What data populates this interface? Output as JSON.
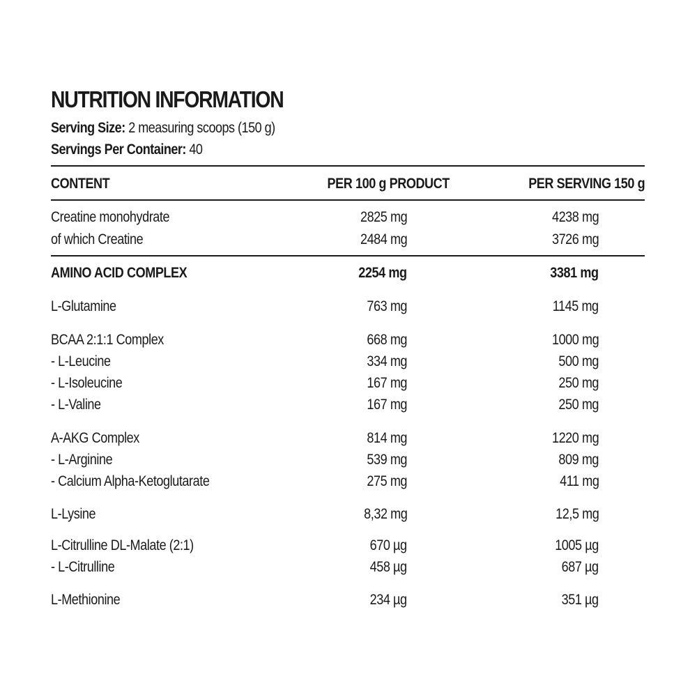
{
  "title": "NUTRITION INFORMATION",
  "serving_size": {
    "label": "Serving Size:",
    "value": " 2 measuring scoops (150 g)"
  },
  "servings_per_container": {
    "label": "Servings Per Container:",
    "value": " 40"
  },
  "table": {
    "headers": [
      "CONTENT",
      "PER 100 g PRODUCT",
      "PER SERVING 150 g"
    ],
    "rows": [
      {
        "name": "Creatine monohydrate",
        "per100": "2825 mg",
        "perServing": "4238 mg"
      },
      {
        "name": "of which Creatine",
        "per100": "2484 mg",
        "perServing": "3726 mg"
      },
      {
        "name": "AMINO ACID COMPLEX",
        "per100": "2254 mg",
        "perServing": "3381 mg",
        "bold": true
      },
      {
        "name": "L-Glutamine",
        "per100": "763 mg",
        "perServing": "1145 mg"
      },
      {
        "name": "BCAA 2:1:1 Complex",
        "per100": "668 mg",
        "perServing": "1000 mg"
      },
      {
        "name": "- L-Leucine",
        "per100": "334 mg",
        "perServing": "500 mg"
      },
      {
        "name": "- L-Isoleucine",
        "per100": "167 mg",
        "perServing": "250 mg"
      },
      {
        "name": "- L-Valine",
        "per100": "167 mg",
        "perServing": "250 mg"
      },
      {
        "name": "A-AKG Complex",
        "per100": "814 mg",
        "perServing": "1220 mg"
      },
      {
        "name": "- L-Arginine",
        "per100": "539 mg",
        "perServing": "809 mg"
      },
      {
        "name": "- Calcium Alpha-Ketoglutarate",
        "per100": "275 mg",
        "perServing": "411 mg"
      },
      {
        "name": "L-Lysine",
        "per100": "8,32 mg",
        "perServing": "12,5 mg"
      },
      {
        "name": "L-Citrulline DL-Malate (2:1)",
        "per100": "670 µg",
        "perServing": "1005 µg"
      },
      {
        "name": "- L-Citrulline",
        "per100": "458 µg",
        "perServing": "687 µg"
      },
      {
        "name": "L-Methionine",
        "per100": "234 µg",
        "perServing": "351 µg"
      }
    ]
  }
}
